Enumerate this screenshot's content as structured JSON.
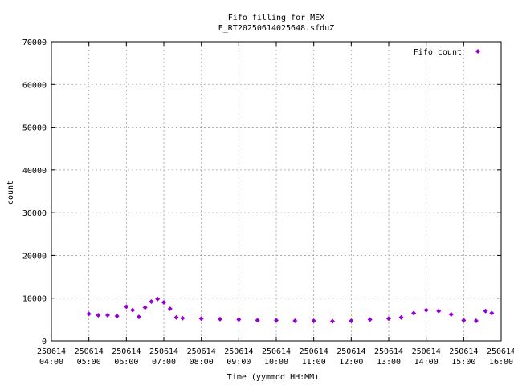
{
  "chart_data": {
    "type": "scatter",
    "title_line1": "Fifo filling for MEX",
    "title_line2": "E_RT20250614025648.sfduZ",
    "xlabel": "Time (yymmdd HH:MM)",
    "ylabel": "count",
    "xlim": [
      "250614 04:00",
      "250614 16:00"
    ],
    "ylim": [
      0,
      70000
    ],
    "yticks": [
      0,
      10000,
      20000,
      30000,
      40000,
      50000,
      60000,
      70000
    ],
    "xticks": [
      {
        "date": "250614",
        "time": "04:00"
      },
      {
        "date": "250614",
        "time": "05:00"
      },
      {
        "date": "250614",
        "time": "06:00"
      },
      {
        "date": "250614",
        "time": "07:00"
      },
      {
        "date": "250614",
        "time": "08:00"
      },
      {
        "date": "250614",
        "time": "09:00"
      },
      {
        "date": "250614",
        "time": "10:00"
      },
      {
        "date": "250614",
        "time": "11:00"
      },
      {
        "date": "250614",
        "time": "12:00"
      },
      {
        "date": "250614",
        "time": "13:00"
      },
      {
        "date": "250614",
        "time": "14:00"
      },
      {
        "date": "250614",
        "time": "15:00"
      },
      {
        "date": "250614",
        "time": "16:00"
      }
    ],
    "grid": true,
    "legend_position": "top-right",
    "series": [
      {
        "name": "Fifo count",
        "color": "#9400d3",
        "marker": "diamond",
        "x": [
          "250614 05:00",
          "250614 05:15",
          "250614 05:30",
          "250614 05:45",
          "250614 06:00",
          "250614 06:10",
          "250614 06:20",
          "250614 06:30",
          "250614 06:40",
          "250614 06:50",
          "250614 07:00",
          "250614 07:10",
          "250614 07:20",
          "250614 07:30",
          "250614 08:00",
          "250614 08:30",
          "250614 09:00",
          "250614 09:30",
          "250614 10:00",
          "250614 10:30",
          "250614 11:00",
          "250614 11:30",
          "250614 12:00",
          "250614 12:30",
          "250614 13:00",
          "250614 13:20",
          "250614 13:40",
          "250614 14:00",
          "250614 14:20",
          "250614 14:40",
          "250614 15:00",
          "250614 15:20",
          "250614 15:35",
          "250614 15:45"
        ],
        "y": [
          6300,
          6000,
          6000,
          5800,
          8000,
          7200,
          5600,
          7800,
          9200,
          9800,
          9000,
          7500,
          5500,
          5300,
          5200,
          5100,
          5000,
          4800,
          4800,
          4700,
          4700,
          4600,
          4700,
          5000,
          5200,
          5500,
          6500,
          7200,
          7000,
          6200,
          4800,
          4700,
          7000,
          6500
        ]
      }
    ]
  }
}
